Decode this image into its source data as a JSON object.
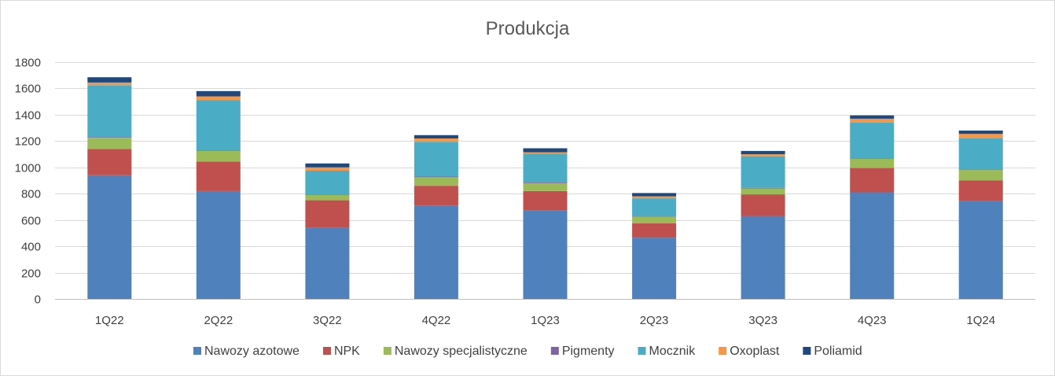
{
  "chart_data": {
    "type": "bar",
    "stacked": true,
    "title": "Produkcja",
    "xlabel": "",
    "ylabel": "",
    "ylim": [
      0,
      1800
    ],
    "yticks": [
      0,
      200,
      400,
      600,
      800,
      1000,
      1200,
      1400,
      1600,
      1800
    ],
    "grid": true,
    "legend_position": "bottom",
    "categories": [
      "1Q22",
      "2Q22",
      "3Q22",
      "4Q22",
      "1Q23",
      "2Q23",
      "3Q23",
      "4Q23",
      "1Q24"
    ],
    "series": [
      {
        "name": "Nawozy azotowe",
        "color": "#4f81bd",
        "values": [
          940,
          820,
          540,
          710,
          675,
          465,
          630,
          810,
          745
        ]
      },
      {
        "name": "NPK",
        "color": "#c0504d",
        "values": [
          200,
          225,
          210,
          150,
          145,
          110,
          165,
          185,
          155
        ]
      },
      {
        "name": "Nawozy specjalistyczne",
        "color": "#9bbb59",
        "values": [
          85,
          80,
          40,
          65,
          60,
          50,
          45,
          70,
          80
        ]
      },
      {
        "name": "Pigmenty",
        "color": "#8064a2",
        "values": [
          5,
          5,
          5,
          5,
          5,
          5,
          5,
          5,
          5
        ]
      },
      {
        "name": "Mocznik",
        "color": "#4bacc6",
        "values": [
          395,
          380,
          180,
          265,
          220,
          135,
          240,
          270,
          235
        ]
      },
      {
        "name": "Oxoplast",
        "color": "#f79646",
        "values": [
          20,
          30,
          25,
          25,
          10,
          15,
          15,
          30,
          35
        ]
      },
      {
        "name": "Poliamid",
        "color": "#1f497d",
        "values": [
          40,
          40,
          30,
          25,
          30,
          25,
          25,
          25,
          25
        ]
      }
    ]
  }
}
